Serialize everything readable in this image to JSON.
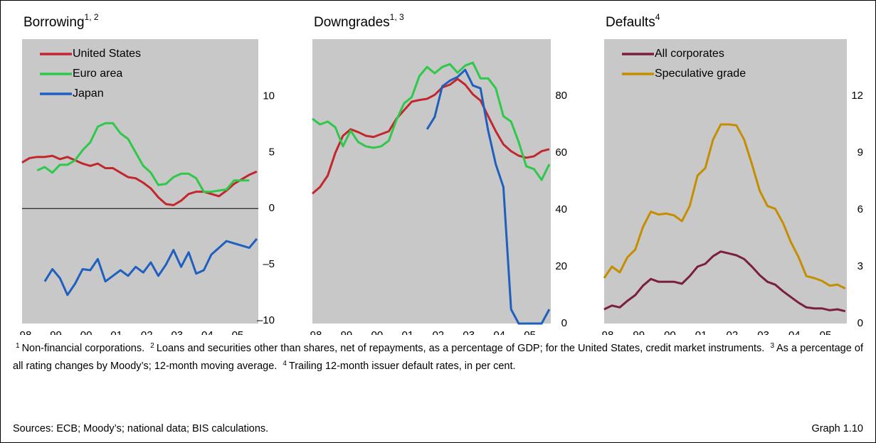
{
  "chart_data": [
    {
      "type": "line",
      "title": "Borrowing",
      "title_superscript": "1, 2",
      "background": "#c8c8c8",
      "zero_line": true,
      "legend": "upper left",
      "x": [
        1998,
        1998.25,
        1998.5,
        1998.75,
        1999,
        1999.25,
        1999.5,
        1999.75,
        2000,
        2000.25,
        2000.5,
        2000.75,
        2001,
        2001.25,
        2001.5,
        2001.75,
        2002,
        2002.25,
        2002.5,
        2002.75,
        2003,
        2003.25,
        2003.5,
        2003.75,
        2004,
        2004.25,
        2004.5,
        2004.75,
        2005,
        2005.25,
        2005.5,
        2005.75
      ],
      "xlim": [
        1998,
        2005.8
      ],
      "xticks": [
        {
          "value": 1998,
          "label": "98"
        },
        {
          "value": 1999,
          "label": "99"
        },
        {
          "value": 2000,
          "label": "00"
        },
        {
          "value": 2001,
          "label": "01"
        },
        {
          "value": 2002,
          "label": "02"
        },
        {
          "value": 2003,
          "label": "03"
        },
        {
          "value": 2004,
          "label": "04"
        },
        {
          "value": 2005,
          "label": "05"
        }
      ],
      "ylim": [
        -10.25,
        15.1
      ],
      "yticks": [
        {
          "value": -10,
          "label": "–10"
        },
        {
          "value": -5,
          "label": "–5"
        },
        0,
        5,
        10
      ],
      "series": [
        {
          "name": "United States",
          "color": "#c1272d",
          "values": [
            4.1,
            4.5,
            4.6,
            4.6,
            4.7,
            4.4,
            4.6,
            4.3,
            4.0,
            3.8,
            4.0,
            3.6,
            3.6,
            3.2,
            2.8,
            2.7,
            2.3,
            1.8,
            1.0,
            0.4,
            0.3,
            0.7,
            1.3,
            1.5,
            1.5,
            1.3,
            1.1,
            1.6,
            2.2,
            2.6,
            3.0,
            3.3
          ]
        },
        {
          "name": "Euro area",
          "color": "#2ec84a",
          "values": [
            null,
            null,
            3.4,
            3.7,
            3.2,
            3.9,
            3.9,
            4.3,
            5.2,
            5.9,
            7.3,
            7.6,
            7.6,
            6.7,
            6.2,
            5.0,
            3.8,
            3.2,
            2.1,
            2.2,
            2.8,
            3.1,
            3.1,
            2.7,
            1.5,
            1.5,
            1.6,
            1.7,
            2.5,
            2.5,
            2.5,
            null
          ]
        },
        {
          "name": "Japan",
          "color": "#1f5fbf",
          "values": [
            null,
            null,
            null,
            -6.5,
            -5.4,
            -6.2,
            -7.7,
            -6.7,
            -5.4,
            -5.5,
            -4.5,
            -6.5,
            -6.0,
            -5.5,
            -6.0,
            -5.2,
            -5.7,
            -4.8,
            -6.0,
            -5.0,
            -3.7,
            -5.2,
            -3.9,
            -5.8,
            -5.5,
            -4.1,
            -3.5,
            -2.9,
            -3.1,
            -3.3,
            -3.5,
            -2.7
          ]
        }
      ]
    },
    {
      "type": "line",
      "title": "Downgrades",
      "title_superscript": "1, 3",
      "background": "#c8c8c8",
      "zero_line": false,
      "x": [
        1998,
        1998.25,
        1998.5,
        1998.75,
        1999,
        1999.25,
        1999.5,
        1999.75,
        2000,
        2000.25,
        2000.5,
        2000.75,
        2001,
        2001.25,
        2001.5,
        2001.75,
        2002,
        2002.25,
        2002.5,
        2002.75,
        2003,
        2003.25,
        2003.5,
        2003.75,
        2004,
        2004.25,
        2004.5,
        2004.75,
        2005,
        2005.25,
        2005.5,
        2005.75
      ],
      "xlim": [
        1998,
        2005.8
      ],
      "xticks": [
        {
          "value": 1998,
          "label": "98"
        },
        {
          "value": 1999,
          "label": "99"
        },
        {
          "value": 2000,
          "label": "00"
        },
        {
          "value": 2001,
          "label": "01"
        },
        {
          "value": 2002,
          "label": "02"
        },
        {
          "value": 2003,
          "label": "03"
        },
        {
          "value": 2004,
          "label": "04"
        },
        {
          "value": 2005,
          "label": "05"
        }
      ],
      "ylim": [
        0,
        100
      ],
      "yticks": [
        0,
        20,
        40,
        60,
        80
      ],
      "series": [
        {
          "color": "#c1272d",
          "values": [
            45.7,
            48,
            52,
            60,
            66,
            68.3,
            67.3,
            66,
            65.6,
            66.6,
            67.6,
            72,
            75,
            78,
            78.6,
            79,
            80.4,
            83,
            84,
            86,
            84,
            80.6,
            78.4,
            72.9,
            67.6,
            63,
            60.6,
            59,
            58.3,
            58.8,
            60.6,
            61.3
          ]
        },
        {
          "color": "#2ec84a",
          "values": [
            72,
            70,
            71,
            69,
            62.3,
            67.8,
            63.8,
            62.3,
            61.8,
            62.3,
            64.3,
            71.6,
            77.4,
            79.6,
            87,
            90.2,
            88,
            90.2,
            91.2,
            88.2,
            90.7,
            91.7,
            86.2,
            86.2,
            82.7,
            72.9,
            71,
            63.8,
            55.3,
            54.3,
            50.5,
            56
          ]
        },
        {
          "color": "#1f5fbf",
          "values": [
            null,
            null,
            null,
            null,
            null,
            null,
            null,
            null,
            null,
            null,
            null,
            null,
            null,
            null,
            null,
            68.3,
            72.6,
            83.4,
            85.4,
            86.7,
            89.2,
            83.7,
            82.7,
            67.8,
            56,
            48,
            5,
            0,
            0,
            0,
            0,
            5
          ]
        }
      ]
    },
    {
      "type": "line",
      "title": "Defaults",
      "title_superscript": "4",
      "background": "#c8c8c8",
      "zero_line": false,
      "legend": "upper left",
      "x": [
        1998,
        1998.25,
        1998.5,
        1998.75,
        1999,
        1999.25,
        1999.5,
        1999.75,
        2000,
        2000.25,
        2000.5,
        2000.75,
        2001,
        2001.25,
        2001.5,
        2001.75,
        2002,
        2002.25,
        2002.5,
        2002.75,
        2003,
        2003.25,
        2003.5,
        2003.75,
        2004,
        2004.25,
        2004.5,
        2004.75,
        2005,
        2005.25,
        2005.5,
        2005.75
      ],
      "xlim": [
        1998,
        2005.8
      ],
      "xticks": [
        {
          "value": 1998,
          "label": "98"
        },
        {
          "value": 1999,
          "label": "99"
        },
        {
          "value": 2000,
          "label": "00"
        },
        {
          "value": 2001,
          "label": "01"
        },
        {
          "value": 2002,
          "label": "02"
        },
        {
          "value": 2003,
          "label": "03"
        },
        {
          "value": 2004,
          "label": "04"
        },
        {
          "value": 2005,
          "label": "05"
        }
      ],
      "ylim": [
        0,
        15
      ],
      "yticks": [
        0,
        3,
        6,
        9,
        12
      ],
      "series": [
        {
          "name": "All corporates",
          "color": "#7b1f3f",
          "values": [
            0.75,
            0.95,
            0.85,
            1.2,
            1.5,
            2.0,
            2.35,
            2.2,
            2.2,
            2.2,
            2.1,
            2.5,
            3.0,
            3.15,
            3.55,
            3.8,
            3.7,
            3.6,
            3.4,
            3.0,
            2.55,
            2.2,
            2.05,
            1.7,
            1.4,
            1.1,
            0.85,
            0.8,
            0.8,
            0.7,
            0.75,
            0.65
          ]
        },
        {
          "name": "Speculative grade",
          "color": "#c48e00",
          "values": [
            2.4,
            3.0,
            2.7,
            3.5,
            3.9,
            5.1,
            5.9,
            5.75,
            5.8,
            5.7,
            5.4,
            6.2,
            7.8,
            8.2,
            9.7,
            10.5,
            10.5,
            10.45,
            9.7,
            8.4,
            7.0,
            6.2,
            6.05,
            5.3,
            4.3,
            3.5,
            2.5,
            2.4,
            2.25,
            2.0,
            2.05,
            1.85
          ]
        }
      ]
    }
  ],
  "footnotes": [
    {
      "mark": "1",
      "text": "Non-financial corporations."
    },
    {
      "mark": "2",
      "text": "Loans and securities other than shares, net of repayments, as a percentage of GDP; for the United States, credit market instruments."
    },
    {
      "mark": "3",
      "text": "As a percentage of all rating changes by Moody’s; 12-month moving average."
    },
    {
      "mark": "4",
      "text": "Trailing 12-month issuer default rates, in per cent."
    }
  ],
  "sources": "Sources: ECB; Moody’s; national data; BIS calculations.",
  "graph_label": "Graph 1.10"
}
